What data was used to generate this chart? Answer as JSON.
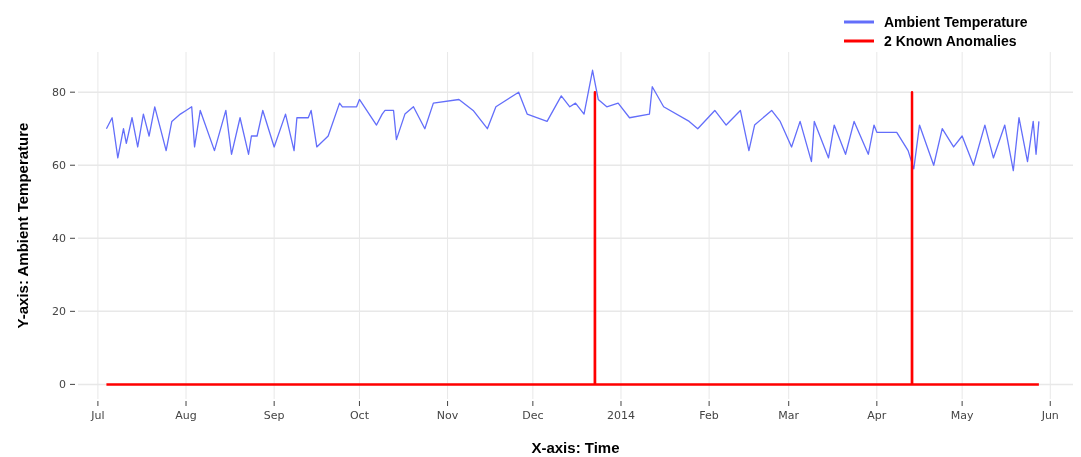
{
  "chart_data": {
    "type": "line",
    "xlabel": "X-axis: Time",
    "ylabel": "Y-axis: Ambient Temperature",
    "xlim": [
      "2013-06-24",
      "2014-06-09"
    ],
    "ylim": [
      -4,
      91
    ],
    "xticks": [
      {
        "value": "2013-07-01",
        "label": "Jul"
      },
      {
        "value": "2013-08-01",
        "label": "Aug"
      },
      {
        "value": "2013-09-01",
        "label": "Sep"
      },
      {
        "value": "2013-10-01",
        "label": "Oct"
      },
      {
        "value": "2013-11-01",
        "label": "Nov"
      },
      {
        "value": "2013-12-01",
        "label": "Dec"
      },
      {
        "value": "2014-01-01",
        "label": "2014"
      },
      {
        "value": "2014-02-01",
        "label": "Feb"
      },
      {
        "value": "2014-03-01",
        "label": "Mar"
      },
      {
        "value": "2014-04-01",
        "label": "Apr"
      },
      {
        "value": "2014-05-01",
        "label": "May"
      },
      {
        "value": "2014-06-01",
        "label": "Jun"
      }
    ],
    "yticks": [
      0,
      20,
      40,
      60,
      80
    ],
    "grid": true,
    "legend": "top right",
    "series": [
      {
        "name": "Ambient Temperature",
        "color": "#636efa",
        "x": [
          "2013-07-04",
          "2013-07-06",
          "2013-07-08",
          "2013-07-10",
          "2013-07-11",
          "2013-07-13",
          "2013-07-15",
          "2013-07-17",
          "2013-07-19",
          "2013-07-21",
          "2013-07-23",
          "2013-07-25",
          "2013-07-27",
          "2013-07-30",
          "2013-08-01",
          "2013-08-03",
          "2013-08-04",
          "2013-08-06",
          "2013-08-11",
          "2013-08-15",
          "2013-08-17",
          "2013-08-20",
          "2013-08-23",
          "2013-08-24",
          "2013-08-26",
          "2013-08-28",
          "2013-09-01",
          "2013-09-05",
          "2013-09-08",
          "2013-09-09",
          "2013-09-13",
          "2013-09-14",
          "2013-09-16",
          "2013-09-20",
          "2013-09-24",
          "2013-09-25",
          "2013-09-30",
          "2013-10-01",
          "2013-10-07",
          "2013-10-09",
          "2013-10-10",
          "2013-10-13",
          "2013-10-14",
          "2013-10-17",
          "2013-10-20",
          "2013-10-24",
          "2013-10-27",
          "2013-11-05",
          "2013-11-10",
          "2013-11-15",
          "2013-11-18",
          "2013-11-26",
          "2013-11-29",
          "2013-12-06",
          "2013-12-11",
          "2013-12-14",
          "2013-12-16",
          "2013-12-19",
          "2013-12-22",
          "2013-12-24",
          "2013-12-27",
          "2013-12-31",
          "2014-01-04",
          "2014-01-11",
          "2014-01-12",
          "2014-01-16",
          "2014-01-25",
          "2014-01-28",
          "2014-02-03",
          "2014-02-07",
          "2014-02-12",
          "2014-02-15",
          "2014-02-17",
          "2014-02-23",
          "2014-02-26",
          "2014-03-02",
          "2014-03-05",
          "2014-03-09",
          "2014-03-10",
          "2014-03-15",
          "2014-03-17",
          "2014-03-21",
          "2014-03-24",
          "2014-03-29",
          "2014-03-31",
          "2014-04-01",
          "2014-04-08",
          "2014-04-12",
          "2014-04-14",
          "2014-04-16",
          "2014-04-21",
          "2014-04-24",
          "2014-04-28",
          "2014-05-01",
          "2014-05-05",
          "2014-05-09",
          "2014-05-12",
          "2014-05-16",
          "2014-05-19",
          "2014-05-21",
          "2014-05-24",
          "2014-05-26",
          "2014-05-27",
          "2014-05-28"
        ],
        "values": [
          70,
          73,
          62,
          70,
          66,
          73,
          65,
          74,
          68,
          76,
          70,
          64,
          72,
          74,
          75,
          76,
          65,
          75,
          64,
          75,
          63,
          73,
          63,
          68,
          68,
          75,
          65,
          74,
          64,
          73,
          73,
          75,
          65,
          68,
          77,
          76,
          76,
          78,
          71,
          74,
          75,
          75,
          67,
          74,
          76,
          70,
          77,
          78,
          75,
          70,
          76,
          80,
          74,
          72,
          79,
          76,
          77,
          74,
          86,
          78,
          76,
          77,
          73,
          74,
          81.5,
          76,
          72,
          70,
          75,
          71,
          75,
          64,
          71,
          75,
          72,
          65,
          72,
          61,
          72,
          62,
          71,
          63,
          72,
          63,
          71,
          69,
          69,
          64,
          59,
          71,
          60,
          70,
          65,
          68,
          60,
          71,
          62,
          71,
          58.5,
          73,
          61,
          72,
          63,
          72
        ]
      },
      {
        "name": "2 Known Anomalies",
        "color": "#ff0000",
        "x": [
          "2013-07-04",
          "2013-12-22T19:00",
          "2013-12-22T20:00",
          "2013-12-22T21:00",
          "2014-04-13T08:00",
          "2014-04-13T09:00",
          "2014-04-13T10:00",
          "2014-05-28"
        ],
        "values": [
          0,
          0,
          80,
          0,
          0,
          80,
          0,
          0
        ]
      }
    ]
  }
}
